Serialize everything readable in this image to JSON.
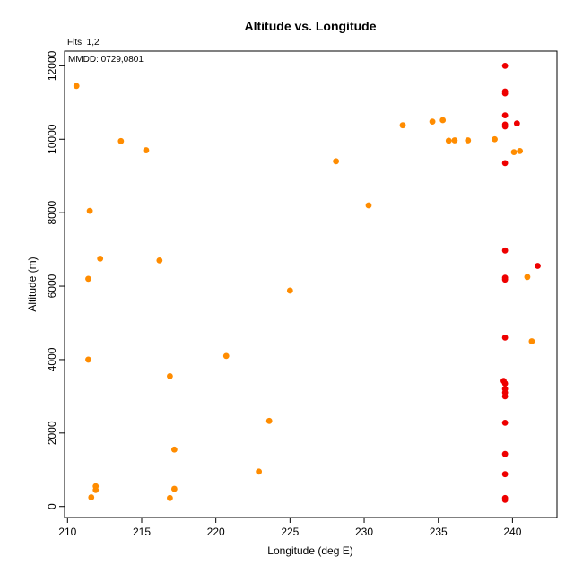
{
  "chart_data": {
    "type": "scatter",
    "title": "Altitude vs. Longitude",
    "xlabel": "Longitude (deg E)",
    "ylabel": "Altitude (m)",
    "annotations": [
      "Flts: 1,2",
      "MMDD: 0729,0801"
    ],
    "xlim": [
      209.8,
      243.0
    ],
    "ylim": [
      -300,
      12400
    ],
    "x_ticks": [
      210,
      215,
      220,
      225,
      230,
      235,
      240
    ],
    "y_ticks": [
      0,
      2000,
      4000,
      6000,
      8000,
      10000,
      12000
    ],
    "grid": false,
    "colors": {
      "orange": "#ff8c00",
      "red": "#ee0000"
    },
    "series": [
      {
        "color": "#ff8c00",
        "points": [
          [
            210.6,
            11450
          ],
          [
            211.5,
            8050
          ],
          [
            211.4,
            6200
          ],
          [
            211.4,
            4000
          ],
          [
            212.2,
            6750
          ],
          [
            211.9,
            550
          ],
          [
            211.9,
            450
          ],
          [
            211.6,
            250
          ],
          [
            213.6,
            9950
          ],
          [
            215.3,
            9700
          ],
          [
            216.2,
            6700
          ],
          [
            216.9,
            3550
          ],
          [
            217.2,
            1550
          ],
          [
            217.2,
            480
          ],
          [
            216.9,
            230
          ],
          [
            220.7,
            4100
          ],
          [
            222.9,
            950
          ],
          [
            223.6,
            2330
          ],
          [
            225.0,
            5880
          ],
          [
            228.1,
            9400
          ],
          [
            230.3,
            8200
          ],
          [
            232.6,
            10380
          ],
          [
            234.6,
            10480
          ],
          [
            235.3,
            10520
          ],
          [
            235.7,
            9960
          ],
          [
            236.1,
            9970
          ],
          [
            237.0,
            9970
          ],
          [
            238.8,
            10000
          ],
          [
            240.1,
            9650
          ],
          [
            240.5,
            9680
          ],
          [
            241.0,
            6250
          ],
          [
            241.3,
            4500
          ]
        ]
      },
      {
        "color": "#ee0000",
        "points": [
          [
            239.5,
            12000
          ],
          [
            239.5,
            11300
          ],
          [
            239.5,
            11250
          ],
          [
            239.5,
            10650
          ],
          [
            239.5,
            10400
          ],
          [
            239.5,
            10350
          ],
          [
            240.3,
            10430
          ],
          [
            239.5,
            9350
          ],
          [
            239.5,
            6970
          ],
          [
            239.5,
            6230
          ],
          [
            239.5,
            6180
          ],
          [
            241.7,
            6550
          ],
          [
            239.5,
            4600
          ],
          [
            239.4,
            3420
          ],
          [
            239.5,
            3350
          ],
          [
            239.5,
            3200
          ],
          [
            239.5,
            3100
          ],
          [
            239.5,
            3000
          ],
          [
            239.5,
            2280
          ],
          [
            239.5,
            1430
          ],
          [
            239.5,
            880
          ],
          [
            239.5,
            230
          ],
          [
            239.5,
            180
          ]
        ]
      }
    ]
  }
}
